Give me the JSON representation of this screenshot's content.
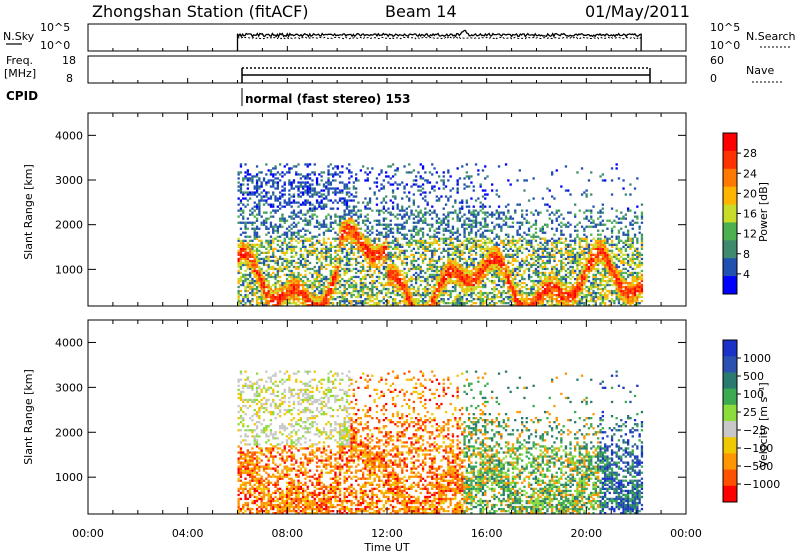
{
  "header": {
    "title": "Zhongshan Station (fitACF)",
    "beam": "Beam 14",
    "date": "01/May/2011"
  },
  "status_panels": {
    "noise": {
      "left_label": "N.Sky",
      "right_label": "N.Search",
      "left_ticks": [
        "10^5",
        "10^0"
      ],
      "right_ticks": [
        "10^5",
        "10^0"
      ]
    },
    "freq": {
      "left_label_line1": "Freq.",
      "left_label_line2": "[MHz]",
      "right_label": "Nave",
      "left_ticks": [
        "18",
        "8"
      ],
      "right_ticks": [
        "60",
        "0"
      ]
    },
    "cpid": {
      "label": "CPID",
      "value": "normal (fast stereo) 153"
    }
  },
  "colors": {
    "power_scale": [
      "#0000ff",
      "#2050b0",
      "#3d8a6e",
      "#4caf50",
      "#c8dc28",
      "#ffb400",
      "#ff7800",
      "#ff3200",
      "#ff0000"
    ],
    "velocity_scale": [
      "#ff0000",
      "#ff5000",
      "#ff9600",
      "#f0c800",
      "#c8c8c8",
      "#8cdc3c",
      "#3caa50",
      "#2a7a70",
      "#2a50b0",
      "#1a32c8"
    ]
  },
  "chart_data": [
    {
      "type": "heatmap",
      "name": "power",
      "title": "",
      "xlabel": "",
      "ylabel": "Slant Range [km]",
      "xlim": [
        "00:00",
        "24:00"
      ],
      "ylim": [
        180,
        4500
      ],
      "yticks": [
        1000,
        2000,
        3000,
        4000
      ],
      "colorbar": {
        "label": "Power [dB]",
        "range": [
          0,
          32
        ],
        "ticks": [
          "4",
          "8",
          "12",
          "16",
          "20",
          "24",
          "28"
        ]
      },
      "data_coverage_hours": [
        6.0,
        22.2
      ],
      "features": [
        {
          "description": "intense near-range echoes (~500-1500 km) throughout 06-22 UT",
          "power_db": [
            20,
            30
          ]
        },
        {
          "description": "weak far-range scatter (~2000-3200 km) 06-16 UT",
          "power_db": [
            4,
            12
          ]
        }
      ]
    },
    {
      "type": "heatmap",
      "name": "velocity",
      "title": "",
      "xlabel": "Time UT",
      "ylabel": "Slant Range [km]",
      "xlim": [
        "00:00",
        "24:00"
      ],
      "ylim": [
        180,
        4500
      ],
      "yticks": [
        1000,
        2000,
        3000,
        4000
      ],
      "xticks": [
        "00:00",
        "04:00",
        "08:00",
        "12:00",
        "16:00",
        "20:00",
        "00:00"
      ],
      "colorbar": {
        "label": "Velocity [m s⁻¹]",
        "ticks": [
          "1000",
          "500",
          "100",
          "25",
          "−25",
          "−100",
          "−500",
          "−1000"
        ]
      },
      "data_coverage_hours": [
        6.0,
        22.2
      ],
      "features": [
        {
          "description": "negative (orange) velocities dominate 06-15 UT near range",
          "velocity_ms": [
            -500,
            -100
          ]
        },
        {
          "description": "near-zero (grey) far-range echoes 06-10 UT",
          "velocity_ms": [
            -25,
            25
          ]
        },
        {
          "description": "positive (green/blue) velocities 15-22 UT",
          "velocity_ms": [
            100,
            1000
          ]
        }
      ]
    }
  ]
}
